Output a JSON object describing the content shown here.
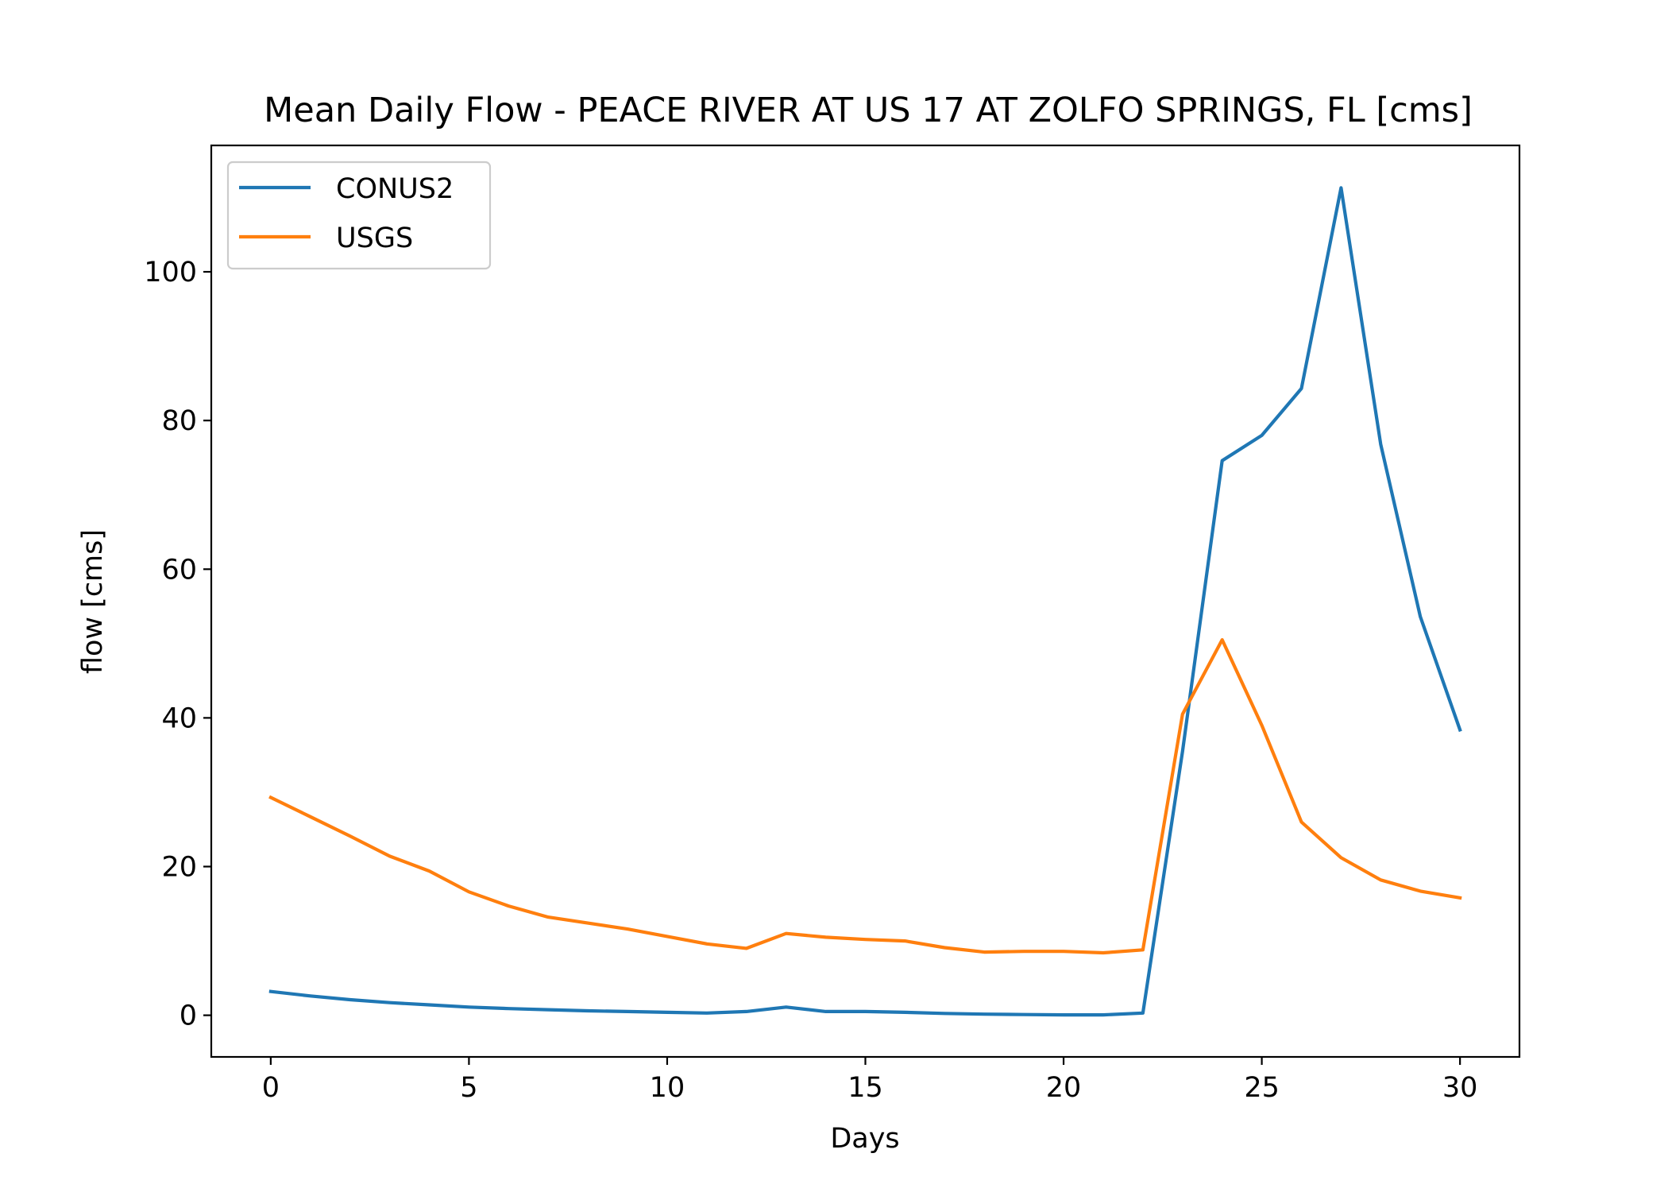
{
  "chart_data": {
    "type": "line",
    "title": "Mean Daily Flow - PEACE RIVER AT US 17 AT ZOLFO SPRINGS, FL [cms]",
    "xlabel": "Days",
    "ylabel": "flow [cms]",
    "xlim": [
      -1.5,
      31.5
    ],
    "ylim": [
      -5.6,
      117.0
    ],
    "xticks": [
      0,
      5,
      10,
      15,
      20,
      25,
      30
    ],
    "yticks": [
      0,
      20,
      40,
      60,
      80,
      100
    ],
    "grid": false,
    "legend_position": "upper-left",
    "x": [
      0,
      1,
      2,
      3,
      4,
      5,
      6,
      7,
      8,
      9,
      10,
      11,
      12,
      13,
      14,
      15,
      16,
      17,
      18,
      19,
      20,
      21,
      22,
      23,
      24,
      25,
      26,
      27,
      28,
      29,
      30
    ],
    "series": [
      {
        "name": "CONUS2",
        "color": "#1f77b4",
        "values": [
          3.2,
          2.6,
          2.1,
          1.7,
          1.4,
          1.1,
          0.9,
          0.75,
          0.6,
          0.5,
          0.4,
          0.3,
          0.5,
          1.1,
          0.5,
          0.5,
          0.4,
          0.25,
          0.15,
          0.1,
          0.05,
          0.05,
          0.3,
          35.5,
          74.6,
          78.0,
          84.3,
          111.3,
          76.8,
          53.6,
          38.4
        ]
      },
      {
        "name": "USGS",
        "color": "#ff7f0e",
        "values": [
          29.3,
          26.7,
          24.1,
          21.4,
          19.4,
          16.6,
          14.7,
          13.2,
          12.4,
          11.6,
          10.6,
          9.6,
          9.0,
          11.0,
          10.5,
          10.2,
          10.0,
          9.1,
          8.5,
          8.6,
          8.6,
          8.4,
          8.8,
          40.5,
          50.5,
          39.0,
          26.0,
          21.2,
          18.2,
          16.7,
          15.8
        ]
      }
    ]
  }
}
